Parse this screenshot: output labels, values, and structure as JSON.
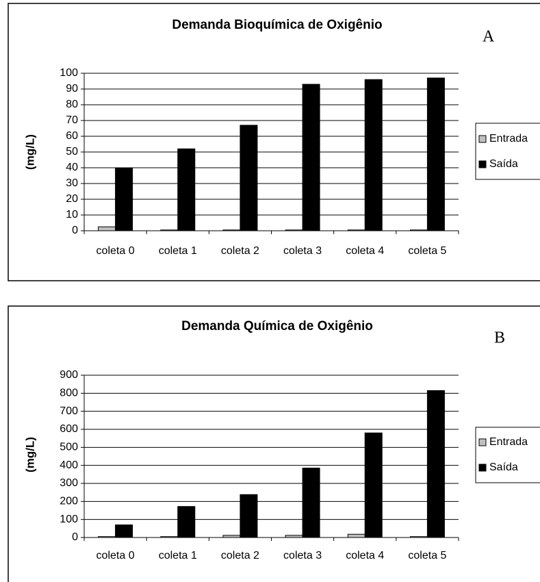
{
  "chart_data": [
    {
      "type": "bar",
      "title": "Demanda Bioquímica de Oxigênio",
      "annotation": "A",
      "ylabel": "(mg/L)",
      "categories": [
        "coleta 0",
        "coleta 1",
        "coleta 2",
        "coleta 3",
        "coleta 4",
        "coleta 5"
      ],
      "series": [
        {
          "name": "Entrada",
          "color": "#c0c0c0",
          "values": [
            2.5,
            0.5,
            0.5,
            0.5,
            0.5,
            0.5
          ]
        },
        {
          "name": "Saída",
          "color": "#000000",
          "values": [
            40,
            52,
            67,
            93,
            96,
            97
          ]
        }
      ],
      "ylim": [
        0,
        100
      ],
      "yticks": [
        0,
        10,
        20,
        30,
        40,
        50,
        60,
        70,
        80,
        90,
        100
      ],
      "grid": true,
      "legend": "right"
    },
    {
      "type": "bar",
      "title": "Demanda Química de Oxigênio",
      "annotation": "B",
      "ylabel": "(mg/L)",
      "categories": [
        "coleta 0",
        "coleta 1",
        "coleta 2",
        "coleta 3",
        "coleta 4",
        "coleta 5"
      ],
      "series": [
        {
          "name": "Entrada",
          "color": "#c0c0c0",
          "values": [
            5,
            5,
            12,
            12,
            18,
            5
          ]
        },
        {
          "name": "Saída",
          "color": "#000000",
          "values": [
            70,
            172,
            238,
            385,
            580,
            815
          ]
        }
      ],
      "ylim": [
        0,
        900
      ],
      "yticks": [
        0,
        100,
        200,
        300,
        400,
        500,
        600,
        700,
        800,
        900
      ],
      "grid": true,
      "legend": "right"
    }
  ]
}
